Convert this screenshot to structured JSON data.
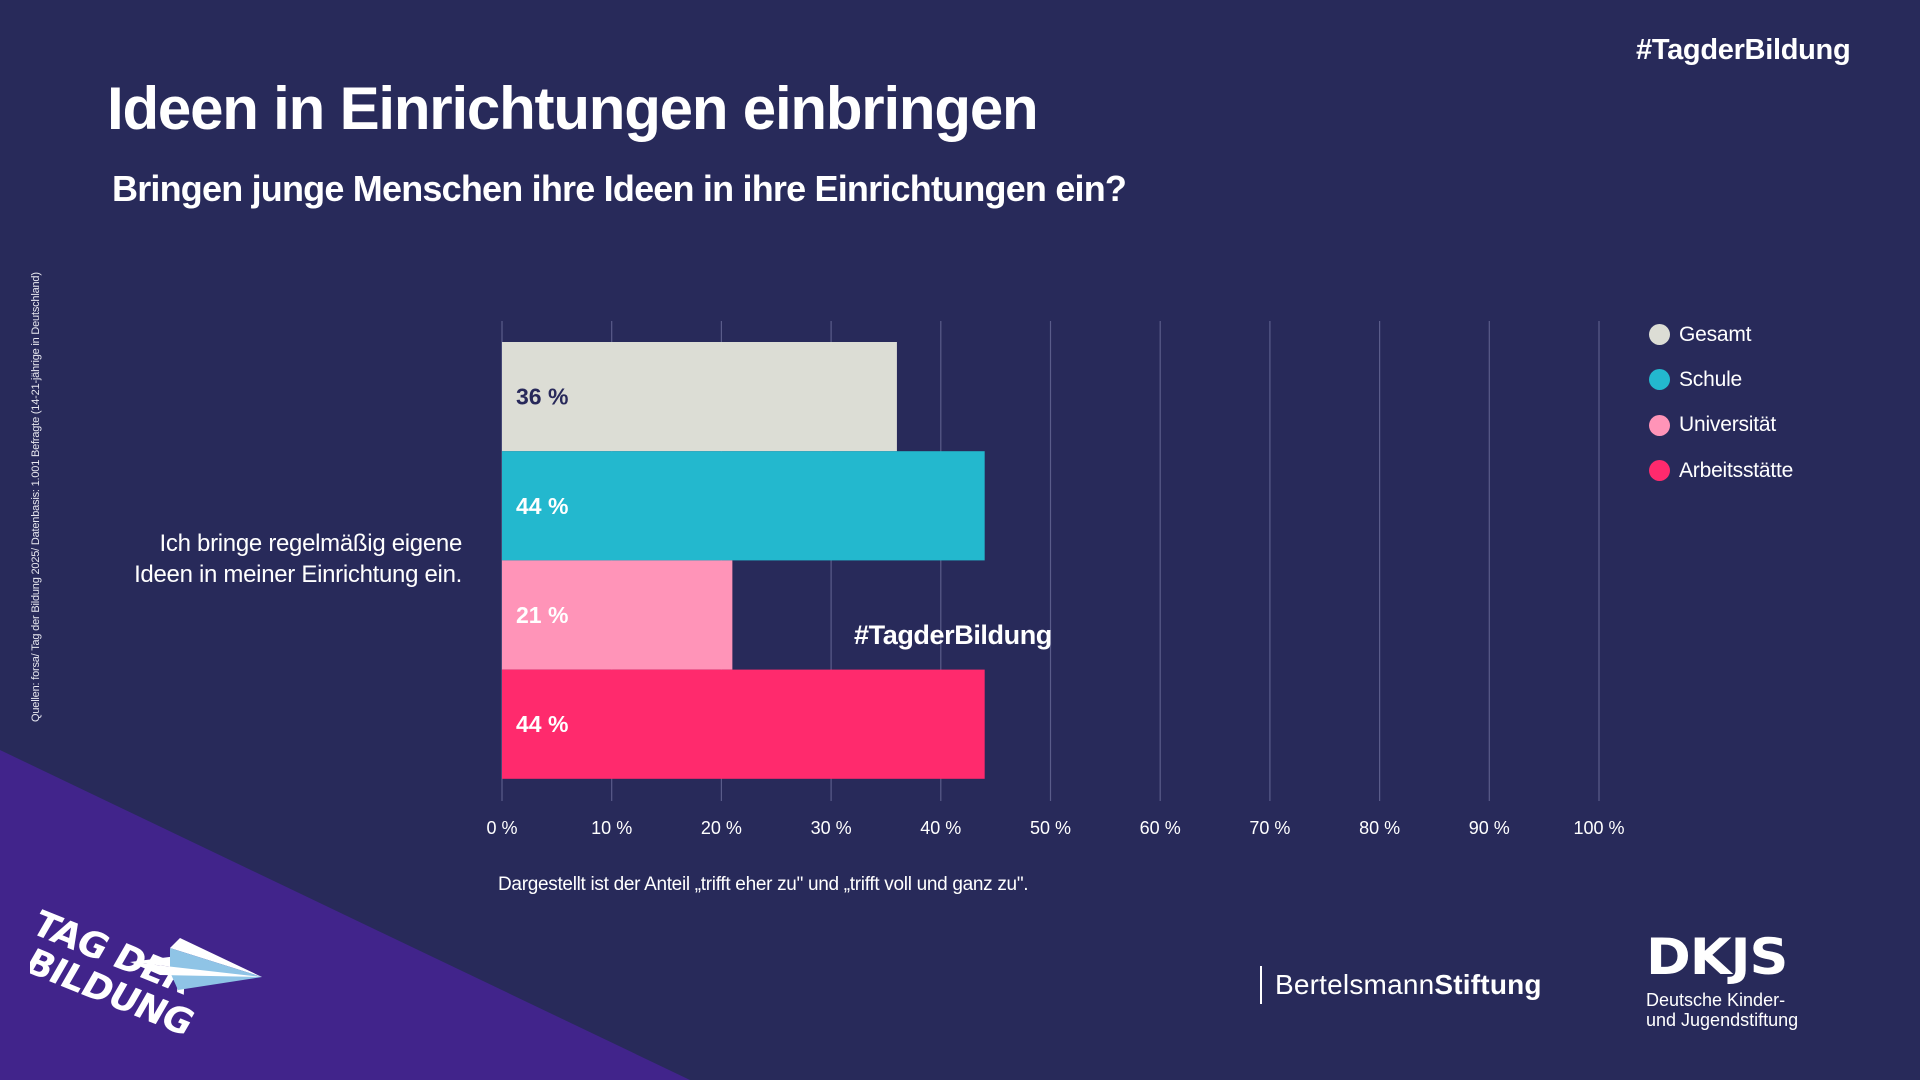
{
  "colors": {
    "background": "#282a5a",
    "accent_triangle": "#41248b",
    "text": "#ffffff",
    "gridline": "#5a5c8a",
    "label_dark": "#28295a"
  },
  "header": {
    "hashtag": "#TagderBildung",
    "title": "Ideen in Einrichtungen einbringen",
    "subtitle": "Bringen junge Menschen ihre Ideen in ihre Einrichtungen ein?"
  },
  "source": "Quellen: forsa/ Tag der Bildung 2025/ Datenbasis: 1.001 Befragte (14-21-jährige in  Deutschland)",
  "watermark": "#TagderBildung",
  "chart_data": {
    "type": "bar",
    "orientation": "horizontal",
    "title": "Bringen junge Menschen ihre Ideen in ihre Einrichtungen ein?",
    "categories": [
      "Ich bringe regelmäßig eigene Ideen in meiner Einrichtung ein."
    ],
    "category_lines": [
      "Ich bringe regelmäßig eigene",
      "Ideen in meiner Einrichtung ein."
    ],
    "series": [
      {
        "name": "Gesamt",
        "values": [
          36
        ],
        "label": "36 %",
        "color": "#dcddd5",
        "label_color": "#28295a"
      },
      {
        "name": "Schule",
        "values": [
          44
        ],
        "label": "44 %",
        "color": "#23b8ce",
        "label_color": "#ffffff"
      },
      {
        "name": "Universität",
        "values": [
          21
        ],
        "label": "21 %",
        "color": "#ff94b8",
        "label_color": "#ffffff"
      },
      {
        "name": "Arbeitsstätte",
        "values": [
          44
        ],
        "label": "44 %",
        "color": "#ff2a6d",
        "label_color": "#ffffff"
      }
    ],
    "xlim": [
      0,
      100
    ],
    "xticks": [
      0,
      10,
      20,
      30,
      40,
      50,
      60,
      70,
      80,
      90,
      100
    ],
    "xtick_labels": [
      "0 %",
      "10 %",
      "20 %",
      "30 %",
      "40 %",
      "50 %",
      "60 %",
      "70 %",
      "80 %",
      "90 %",
      "100 %"
    ],
    "xlabel": "",
    "ylabel": "",
    "grid": true,
    "legend_position": "right",
    "note": "Dargestellt ist der Anteil „trifft eher zu\" und „trifft voll und ganz zu\"."
  },
  "logos": {
    "tag_der_bildung": {
      "line1": "TAG DER",
      "line2": "BILDUNG"
    },
    "bertelsmann": {
      "regular": "Bertelsmann",
      "bold": "Stiftung"
    },
    "dkjs": {
      "mark": "DKJS",
      "line1": "Deutsche Kinder-",
      "line2": "und Jugendstiftung"
    }
  }
}
